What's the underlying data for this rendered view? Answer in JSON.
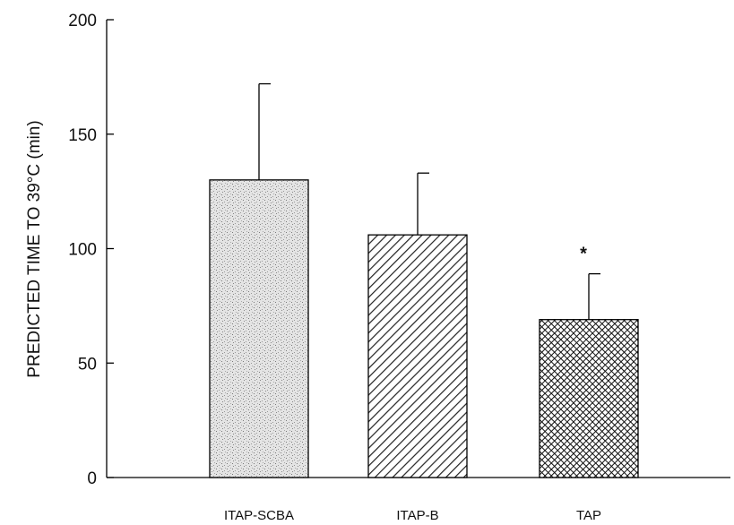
{
  "chart_data": {
    "type": "bar",
    "title": "",
    "xlabel": "",
    "ylabel": "PREDICTED TIME TO 39°C (min)",
    "ylim": [
      0,
      200
    ],
    "yticks": [
      0,
      50,
      100,
      150,
      200
    ],
    "grid": false,
    "categories": [
      "ITAP-SCBA",
      "ITAP-B",
      "TAP"
    ],
    "values": [
      130,
      106,
      69
    ],
    "error_upper": [
      42,
      27,
      20
    ],
    "patterns": [
      "stipple",
      "diagonal-hatch",
      "crosshatch"
    ],
    "annotations": [
      {
        "category": "TAP",
        "text": "*"
      }
    ]
  }
}
